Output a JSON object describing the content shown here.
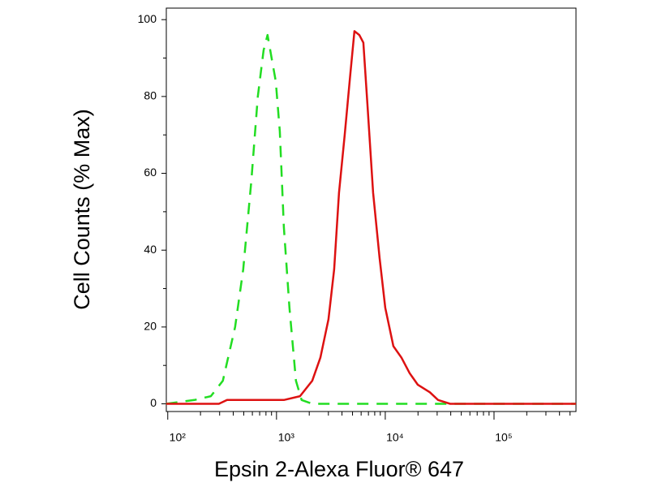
{
  "chart_data": {
    "type": "line",
    "x_label": "Epsin 2-Alexa Fluor® 647",
    "y_label": "Cell Counts (% Max)",
    "x_scale": "log",
    "xlim": [
      97,
      567000
    ],
    "xticks": [
      {
        "value": 100,
        "label": "10²"
      },
      {
        "value": 1000,
        "label": "10³"
      },
      {
        "value": 10000,
        "label": "10⁴"
      },
      {
        "value": 100000,
        "label": "10⁵"
      }
    ],
    "ylim": [
      -2,
      103
    ],
    "yticks": [
      0,
      20,
      40,
      60,
      80,
      100
    ],
    "series": [
      {
        "color": "#22dd22",
        "dash": true,
        "x": [
          96.6,
          176,
          249,
          321,
          416,
          494,
          587,
          673,
          760,
          828,
          902,
          984,
          1072,
          1168,
          1316,
          1510,
          1703,
          2130,
          15400,
          567000
        ],
        "values": [
          0,
          1,
          2,
          6,
          20,
          35,
          58,
          80,
          92,
          96,
          90,
          84,
          71,
          46,
          25,
          6,
          1,
          0,
          0,
          0
        ]
      },
      {
        "color": "#dd1111",
        "dash": false,
        "x": [
          96.6,
          295,
          351,
          1168,
          1644,
          2130,
          2530,
          3006,
          3388,
          3758,
          4238,
          4779,
          5203,
          5768,
          6289,
          6855,
          7730,
          8870,
          10000,
          11880,
          14100,
          16750,
          19890,
          25720,
          30570,
          39540,
          567000
        ],
        "values": [
          0,
          0,
          1,
          1,
          2,
          6,
          12,
          22,
          35,
          55,
          70,
          86,
          97,
          96,
          94,
          78,
          55,
          38,
          25,
          15,
          12,
          8,
          5,
          3,
          1,
          0,
          0
        ]
      }
    ]
  }
}
